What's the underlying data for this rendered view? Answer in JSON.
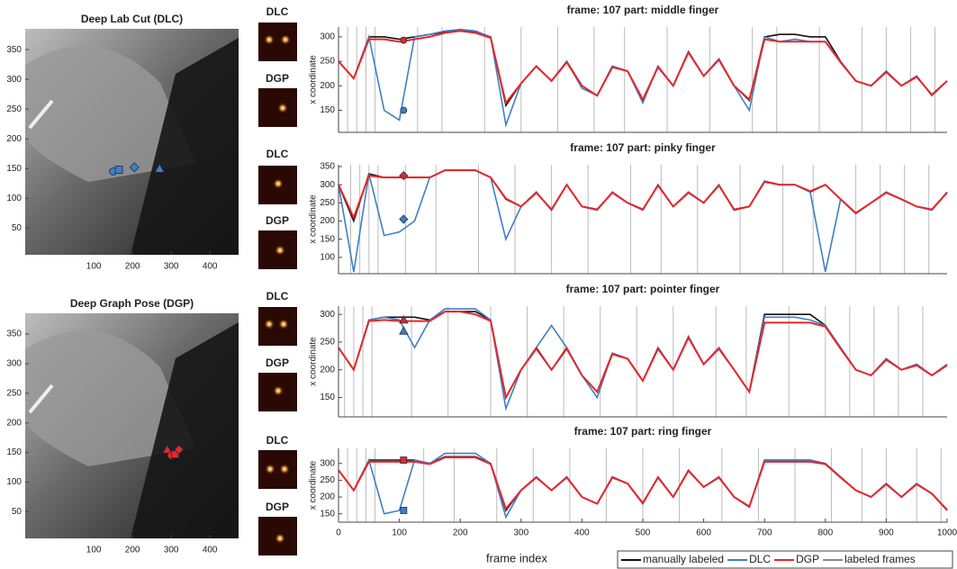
{
  "thumbnails": [
    {
      "label": "DLC"
    },
    {
      "label": "DGP"
    },
    {
      "label": "DLC"
    },
    {
      "label": "DGP"
    },
    {
      "label": "DLC"
    },
    {
      "label": "DGP"
    },
    {
      "label": "DLC"
    },
    {
      "label": "DGP"
    }
  ],
  "chart_data": [
    {
      "type": "scatter",
      "title": "Deep Lab Cut (DLC)",
      "xlim": [
        -77,
        474
      ],
      "ylim": [
        5,
        385
      ],
      "xticks": [
        100,
        200,
        300,
        400
      ],
      "yticks": [
        50,
        100,
        150,
        200,
        250,
        300,
        350
      ],
      "color": "#3f7fc4",
      "points": {
        "shape": [
          "circle",
          "square",
          "diamond",
          "triangle"
        ],
        "x": [
          150,
          165,
          205,
          270
        ],
        "y": [
          145,
          148,
          152,
          150
        ]
      }
    },
    {
      "type": "scatter",
      "title": "Deep Graph Pose (DGP)",
      "xlim": [
        -77,
        474
      ],
      "ylim": [
        5,
        385
      ],
      "xticks": [
        100,
        200,
        300,
        400
      ],
      "yticks": [
        50,
        100,
        150,
        200,
        250,
        300,
        350
      ],
      "color": "#e8262a",
      "points": {
        "shape": [
          "triangle",
          "circle",
          "square",
          "diamond"
        ],
        "x": [
          290,
          300,
          310,
          320
        ],
        "y": [
          155,
          145,
          147,
          155
        ]
      }
    },
    {
      "type": "line",
      "title": "frame: 107   part: middle finger",
      "ylabel": "x coordinate",
      "xlim": [
        0,
        1000
      ],
      "ylim": [
        105,
        320
      ],
      "yticks": [
        150,
        200,
        250,
        300
      ],
      "x": [
        0,
        25,
        50,
        75,
        100,
        125,
        150,
        175,
        200,
        225,
        250,
        275,
        300,
        325,
        350,
        375,
        400,
        425,
        450,
        475,
        500,
        525,
        550,
        575,
        600,
        625,
        650,
        675,
        700,
        725,
        750,
        775,
        800,
        825,
        850,
        875,
        900,
        925,
        950,
        975,
        1000
      ],
      "series": [
        {
          "name": "manually labeled",
          "color": "#111111",
          "values": [
            250,
            215,
            300,
            300,
            295,
            300,
            305,
            310,
            315,
            310,
            300,
            160,
            205,
            240,
            210,
            250,
            200,
            180,
            240,
            230,
            170,
            240,
            200,
            270,
            220,
            255,
            200,
            170,
            300,
            305,
            305,
            300,
            300,
            250,
            210,
            200,
            230,
            200,
            220,
            180,
            210
          ]
        },
        {
          "name": "DLC",
          "color": "#3f7fc4",
          "values": [
            250,
            215,
            300,
            150,
            130,
            300,
            305,
            312,
            315,
            312,
            300,
            120,
            205,
            240,
            210,
            250,
            195,
            180,
            240,
            230,
            165,
            240,
            200,
            270,
            220,
            255,
            200,
            150,
            300,
            290,
            295,
            290,
            290,
            250,
            210,
            200,
            230,
            200,
            220,
            180,
            210
          ]
        },
        {
          "name": "DGP",
          "color": "#e8262a",
          "values": [
            250,
            215,
            295,
            295,
            290,
            295,
            300,
            308,
            312,
            308,
            298,
            165,
            205,
            240,
            210,
            248,
            200,
            180,
            238,
            230,
            172,
            238,
            200,
            268,
            220,
            253,
            200,
            172,
            295,
            290,
            290,
            290,
            290,
            248,
            210,
            200,
            228,
            200,
            218,
            182,
            210
          ]
        }
      ],
      "labeled_frames": {
        "name": "labeled frames",
        "color": "#bbbbbb",
        "x": [
          15,
          30,
          45,
          60,
          130,
          170,
          240,
          300,
          360,
          420,
          470,
          540,
          610,
          680,
          720,
          790,
          860,
          900,
          940,
          980
        ]
      },
      "marker": {
        "shape": "circle",
        "x": 107,
        "dlc": 150,
        "dgp": 293
      }
    },
    {
      "type": "line",
      "title": "frame: 107   part: pinky finger",
      "ylabel": "x coordinate",
      "xlim": [
        0,
        1000
      ],
      "ylim": [
        55,
        355
      ],
      "yticks": [
        100,
        150,
        200,
        250,
        300,
        350
      ],
      "x": [
        0,
        25,
        50,
        75,
        100,
        125,
        150,
        175,
        200,
        225,
        250,
        275,
        300,
        325,
        350,
        375,
        400,
        425,
        450,
        475,
        500,
        525,
        550,
        575,
        600,
        625,
        650,
        675,
        700,
        725,
        750,
        775,
        800,
        825,
        850,
        875,
        900,
        925,
        950,
        975,
        1000
      ],
      "series": [
        {
          "name": "manually labeled",
          "color": "#111111",
          "values": [
            300,
            200,
            330,
            320,
            320,
            320,
            320,
            340,
            340,
            340,
            320,
            260,
            240,
            280,
            230,
            300,
            240,
            230,
            280,
            250,
            230,
            300,
            240,
            280,
            250,
            300,
            230,
            240,
            310,
            300,
            300,
            280,
            300,
            260,
            220,
            250,
            280,
            260,
            240,
            230,
            280
          ]
        },
        {
          "name": "DLC",
          "color": "#3f7fc4",
          "values": [
            300,
            60,
            330,
            160,
            170,
            200,
            320,
            340,
            340,
            340,
            320,
            150,
            240,
            280,
            230,
            300,
            240,
            230,
            280,
            250,
            230,
            300,
            240,
            280,
            250,
            300,
            230,
            240,
            310,
            300,
            300,
            280,
            60,
            260,
            220,
            250,
            280,
            260,
            240,
            230,
            280
          ]
        },
        {
          "name": "DGP",
          "color": "#e8262a",
          "values": [
            300,
            210,
            325,
            320,
            320,
            320,
            320,
            340,
            340,
            340,
            320,
            262,
            240,
            278,
            232,
            300,
            240,
            232,
            278,
            250,
            232,
            298,
            240,
            278,
            250,
            298,
            232,
            240,
            308,
            300,
            300,
            282,
            300,
            260,
            222,
            250,
            278,
            260,
            240,
            232,
            278
          ]
        }
      ],
      "labeled_frames": {
        "name": "labeled frames",
        "color": "#bbbbbb",
        "x": [
          20,
          35,
          50,
          65,
          110,
          160,
          230,
          290,
          350,
          410,
          480,
          530,
          590,
          660,
          730,
          780,
          850,
          890,
          930,
          970
        ]
      },
      "marker": {
        "shape": "diamond",
        "x": 107,
        "dlc": 205,
        "dgp": 325
      }
    },
    {
      "type": "line",
      "title": "frame: 107   part: pointer finger",
      "ylabel": "x coordinate",
      "xlim": [
        0,
        1000
      ],
      "ylim": [
        115,
        315
      ],
      "yticks": [
        150,
        200,
        250,
        300
      ],
      "x": [
        0,
        25,
        50,
        75,
        100,
        125,
        150,
        175,
        200,
        225,
        250,
        275,
        300,
        325,
        350,
        375,
        400,
        425,
        450,
        475,
        500,
        525,
        550,
        575,
        600,
        625,
        650,
        675,
        700,
        725,
        750,
        775,
        800,
        825,
        850,
        875,
        900,
        925,
        950,
        975,
        1000
      ],
      "series": [
        {
          "name": "manually labeled",
          "color": "#111111",
          "values": [
            240,
            200,
            290,
            295,
            295,
            295,
            290,
            305,
            305,
            305,
            290,
            150,
            200,
            240,
            200,
            240,
            190,
            160,
            230,
            220,
            180,
            240,
            200,
            260,
            210,
            240,
            200,
            160,
            300,
            300,
            300,
            300,
            280,
            240,
            200,
            190,
            220,
            200,
            210,
            190,
            210
          ]
        },
        {
          "name": "DLC",
          "color": "#3f7fc4",
          "values": [
            240,
            200,
            290,
            295,
            290,
            240,
            290,
            310,
            310,
            310,
            290,
            130,
            200,
            240,
            280,
            240,
            190,
            150,
            230,
            220,
            180,
            240,
            200,
            260,
            210,
            240,
            200,
            160,
            295,
            295,
            295,
            290,
            280,
            240,
            200,
            190,
            220,
            200,
            210,
            190,
            210
          ]
        },
        {
          "name": "DGP",
          "color": "#e8262a",
          "values": [
            240,
            200,
            288,
            290,
            288,
            288,
            288,
            305,
            305,
            300,
            288,
            150,
            200,
            238,
            200,
            238,
            190,
            160,
            228,
            220,
            180,
            238,
            200,
            258,
            210,
            238,
            200,
            160,
            285,
            285,
            285,
            285,
            278,
            238,
            200,
            190,
            218,
            200,
            208,
            190,
            208
          ]
        }
      ],
      "labeled_frames": {
        "name": "labeled frames",
        "color": "#bbbbbb",
        "x": [
          10,
          25,
          40,
          55,
          120,
          180,
          250,
          310,
          370,
          430,
          490,
          550,
          620,
          670,
          740,
          800,
          840,
          880,
          920,
          960
        ]
      },
      "marker": {
        "shape": "triangle",
        "x": 107,
        "dlc": 270,
        "dgp": 290
      }
    },
    {
      "type": "line",
      "title": "frame: 107   part: ring finger",
      "ylabel": "x coordinate",
      "xlabel": "frame index",
      "xlim": [
        0,
        1000
      ],
      "ylim": [
        125,
        345
      ],
      "yticks": [
        150,
        200,
        250,
        300
      ],
      "xticks": [
        0,
        100,
        200,
        300,
        400,
        500,
        600,
        700,
        800,
        900,
        1000
      ],
      "legend": "below",
      "x": [
        0,
        25,
        50,
        75,
        100,
        125,
        150,
        175,
        200,
        225,
        250,
        275,
        300,
        325,
        350,
        375,
        400,
        425,
        450,
        475,
        500,
        525,
        550,
        575,
        600,
        625,
        650,
        675,
        700,
        725,
        750,
        775,
        800,
        825,
        850,
        875,
        900,
        925,
        950,
        975,
        1000
      ],
      "series": [
        {
          "name": "manually labeled",
          "color": "#111111",
          "values": [
            280,
            220,
            310,
            310,
            310,
            310,
            300,
            320,
            320,
            320,
            300,
            160,
            220,
            260,
            220,
            260,
            200,
            180,
            260,
            240,
            180,
            260,
            200,
            280,
            230,
            260,
            200,
            170,
            310,
            310,
            310,
            310,
            300,
            260,
            220,
            200,
            240,
            200,
            240,
            210,
            160
          ]
        },
        {
          "name": "DLC",
          "color": "#3f7fc4",
          "values": [
            280,
            220,
            310,
            150,
            160,
            310,
            300,
            330,
            330,
            330,
            300,
            140,
            220,
            260,
            220,
            260,
            200,
            180,
            260,
            240,
            180,
            260,
            200,
            280,
            230,
            260,
            200,
            170,
            310,
            310,
            310,
            310,
            300,
            260,
            220,
            200,
            240,
            200,
            240,
            210,
            160
          ]
        },
        {
          "name": "DGP",
          "color": "#e8262a",
          "values": [
            280,
            220,
            305,
            305,
            305,
            305,
            298,
            318,
            318,
            318,
            298,
            165,
            220,
            258,
            220,
            258,
            200,
            180,
            258,
            240,
            182,
            258,
            200,
            278,
            230,
            258,
            200,
            172,
            305,
            305,
            305,
            305,
            298,
            258,
            220,
            200,
            238,
            200,
            238,
            210,
            162
          ]
        }
      ],
      "labeled_frames": {
        "name": "labeled frames",
        "color": "#bbbbbb",
        "x": [
          15,
          30,
          45,
          60,
          140,
          190,
          260,
          320,
          380,
          440,
          500,
          560,
          630,
          690,
          750,
          810,
          860,
          900,
          950,
          990
        ]
      },
      "marker": {
        "shape": "square",
        "x": 107,
        "dlc": 160,
        "dgp": 310
      }
    }
  ]
}
